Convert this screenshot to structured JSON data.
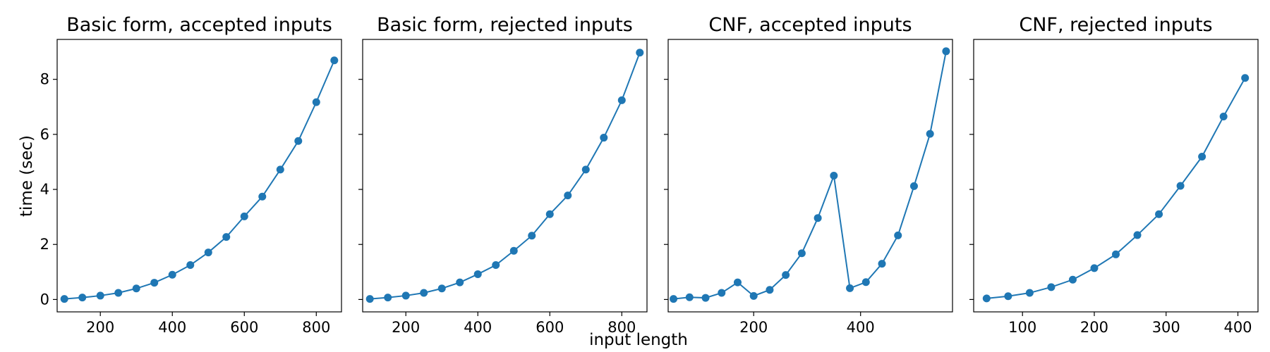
{
  "figure": {
    "xlabel": "input length",
    "ylabel": "time (sec)",
    "line_color": "#1f77b4",
    "sharey": true
  },
  "chart_data": [
    {
      "type": "line",
      "title": "Basic form, accepted inputs",
      "xlim": [
        80,
        870
      ],
      "ylim": [
        -0.45,
        9.45
      ],
      "xticks": [
        200,
        400,
        600,
        800
      ],
      "yticks": [
        0,
        2,
        4,
        6,
        8
      ],
      "x": [
        100,
        150,
        200,
        250,
        300,
        350,
        400,
        450,
        500,
        550,
        600,
        650,
        700,
        750,
        800,
        850
      ],
      "y": [
        0.02,
        0.07,
        0.14,
        0.24,
        0.4,
        0.61,
        0.9,
        1.25,
        1.71,
        2.27,
        3.02,
        3.74,
        4.72,
        5.76,
        7.17,
        8.69
      ]
    },
    {
      "type": "line",
      "title": "Basic form, rejected inputs",
      "xlim": [
        80,
        870
      ],
      "ylim": [
        -0.45,
        9.45
      ],
      "xticks": [
        200,
        400,
        600,
        800
      ],
      "yticks": [
        0,
        2,
        4,
        6,
        8
      ],
      "x": [
        100,
        150,
        200,
        250,
        300,
        350,
        400,
        450,
        500,
        550,
        600,
        650,
        700,
        750,
        800,
        850
      ],
      "y": [
        0.02,
        0.07,
        0.14,
        0.24,
        0.4,
        0.62,
        0.92,
        1.25,
        1.77,
        2.32,
        3.1,
        3.78,
        4.72,
        5.88,
        7.24,
        8.97
      ]
    },
    {
      "type": "line",
      "title": "CNF, accepted inputs",
      "xlim": [
        40,
        572
      ],
      "ylim": [
        -0.45,
        9.45
      ],
      "xticks": [
        200,
        400
      ],
      "yticks": [
        0,
        2,
        4,
        6,
        8
      ],
      "x": [
        50,
        80,
        110,
        140,
        170,
        200,
        230,
        260,
        290,
        320,
        350,
        380,
        410,
        440,
        470,
        500,
        530,
        560
      ],
      "y": [
        0.02,
        0.08,
        0.06,
        0.24,
        0.62,
        0.13,
        0.35,
        0.89,
        1.68,
        2.96,
        4.5,
        0.41,
        0.63,
        1.3,
        2.33,
        4.12,
        6.02,
        9.02
      ]
    },
    {
      "type": "line",
      "title": "CNF, rejected inputs",
      "xlim": [
        32,
        428
      ],
      "ylim": [
        -0.45,
        9.45
      ],
      "xticks": [
        100,
        200,
        300,
        400
      ],
      "yticks": [
        0,
        2,
        4,
        6,
        8
      ],
      "x": [
        50,
        80,
        110,
        140,
        170,
        200,
        230,
        260,
        290,
        320,
        350,
        380,
        410
      ],
      "y": [
        0.04,
        0.12,
        0.24,
        0.45,
        0.72,
        1.14,
        1.64,
        2.34,
        3.1,
        4.13,
        5.19,
        6.65,
        8.05
      ]
    }
  ]
}
